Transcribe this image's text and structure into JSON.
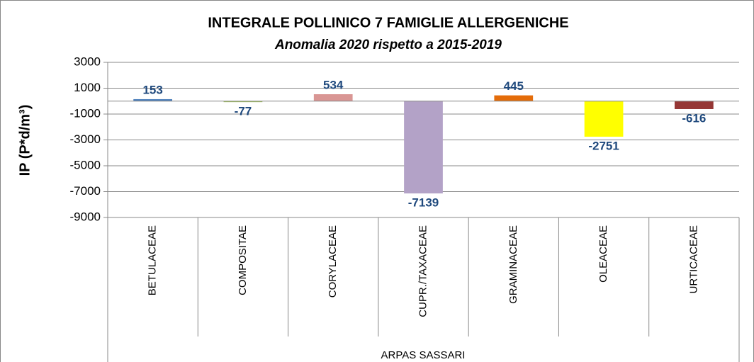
{
  "chart_data": {
    "type": "bar",
    "title": "INTEGRALE POLLINICO 7 FAMIGLIE ALLERGENICHE",
    "subtitle": "Anomalia 2020 rispetto a 2015-2019",
    "ylabel": "IP (P*d/m³)",
    "group_label": "ARPAS SASSARI",
    "categories": [
      "BETULACEAE",
      "COMPOSITAE",
      "CORYLACEAE",
      "CUPR./TAXACEAE",
      "GRAMINACEAE",
      "OLEACEAE",
      "URTICACEAE"
    ],
    "values": [
      153,
      -77,
      534,
      -7139,
      445,
      -2751,
      -616
    ],
    "colors": [
      "#4f81bd",
      "#9bbb59",
      "#d99694",
      "#b3a2c7",
      "#e46c0a",
      "#ffff00",
      "#953735"
    ],
    "ylim": [
      -9000,
      3000
    ],
    "yticks": [
      3000,
      1000,
      -1000,
      -3000,
      -5000,
      -7000,
      -9000
    ],
    "grid": true
  }
}
